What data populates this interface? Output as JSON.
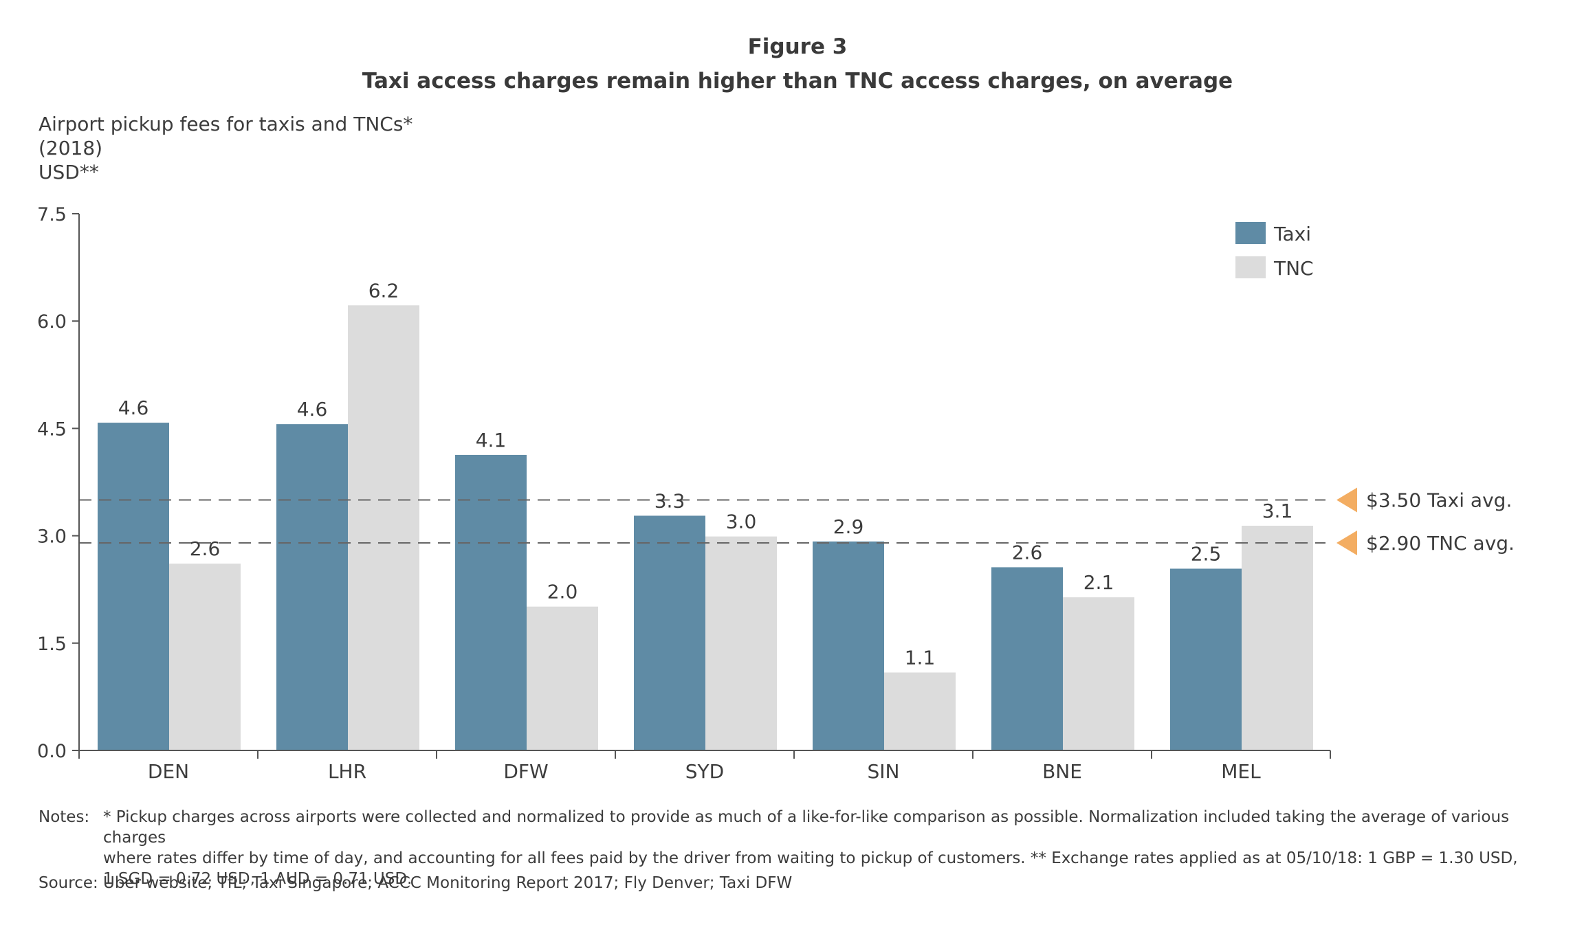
{
  "figure": {
    "number": "Figure 3",
    "title": "Taxi access charges remain higher than TNC access charges, on average"
  },
  "chart_data": {
    "type": "bar",
    "title": "Airport pickup fees for taxis and TNCs*",
    "subtitle": "(2018)",
    "ylabel": "USD**",
    "xlabel": "",
    "ylim": [
      0,
      7.5
    ],
    "yticks": [
      "0.0",
      "1.5",
      "3.0",
      "4.5",
      "6.0",
      "7.5"
    ],
    "categories": [
      "DEN",
      "LHR",
      "DFW",
      "SYD",
      "SIN",
      "BNE",
      "MEL"
    ],
    "series": [
      {
        "name": "Taxi",
        "color": "#5f8ba5",
        "values": [
          4.58,
          4.56,
          4.13,
          3.28,
          2.92,
          2.56,
          2.54
        ],
        "labels": [
          "4.6",
          "4.6",
          "4.1",
          "3.3",
          "2.9",
          "2.6",
          "2.5"
        ]
      },
      {
        "name": "TNC",
        "color": "#dcdcdc",
        "values": [
          2.61,
          6.22,
          2.01,
          2.99,
          1.09,
          2.14,
          3.14
        ],
        "labels": [
          "2.6",
          "6.2",
          "2.0",
          "3.0",
          "1.1",
          "2.1",
          "3.1"
        ]
      }
    ],
    "reference_lines": [
      {
        "value": 3.5,
        "label": "$3.50 Taxi avg."
      },
      {
        "value": 2.9,
        "label": "$2.90 TNC avg."
      }
    ],
    "marker_color": "#f3ad62",
    "grid": false,
    "legend_position": "top-right"
  },
  "notes": {
    "label": "Notes:",
    "lines": [
      "* Pickup charges across airports were collected and normalized to provide as much of a like-for-like comparison as possible. Normalization included taking the average of various charges",
      "where rates differ by time of day, and accounting for all fees paid by the driver from waiting to pickup of customers. ** Exchange rates applied as at 05/10/18: 1 GBP = 1.30 USD,",
      "1 SGD = 0.72 USD, 1 AUD = 0.71 USD."
    ]
  },
  "source": "Source:  Uber website; TfL; Taxi Singapore; ACCC Monitoring Report 2017; Fly Denver; Taxi DFW"
}
